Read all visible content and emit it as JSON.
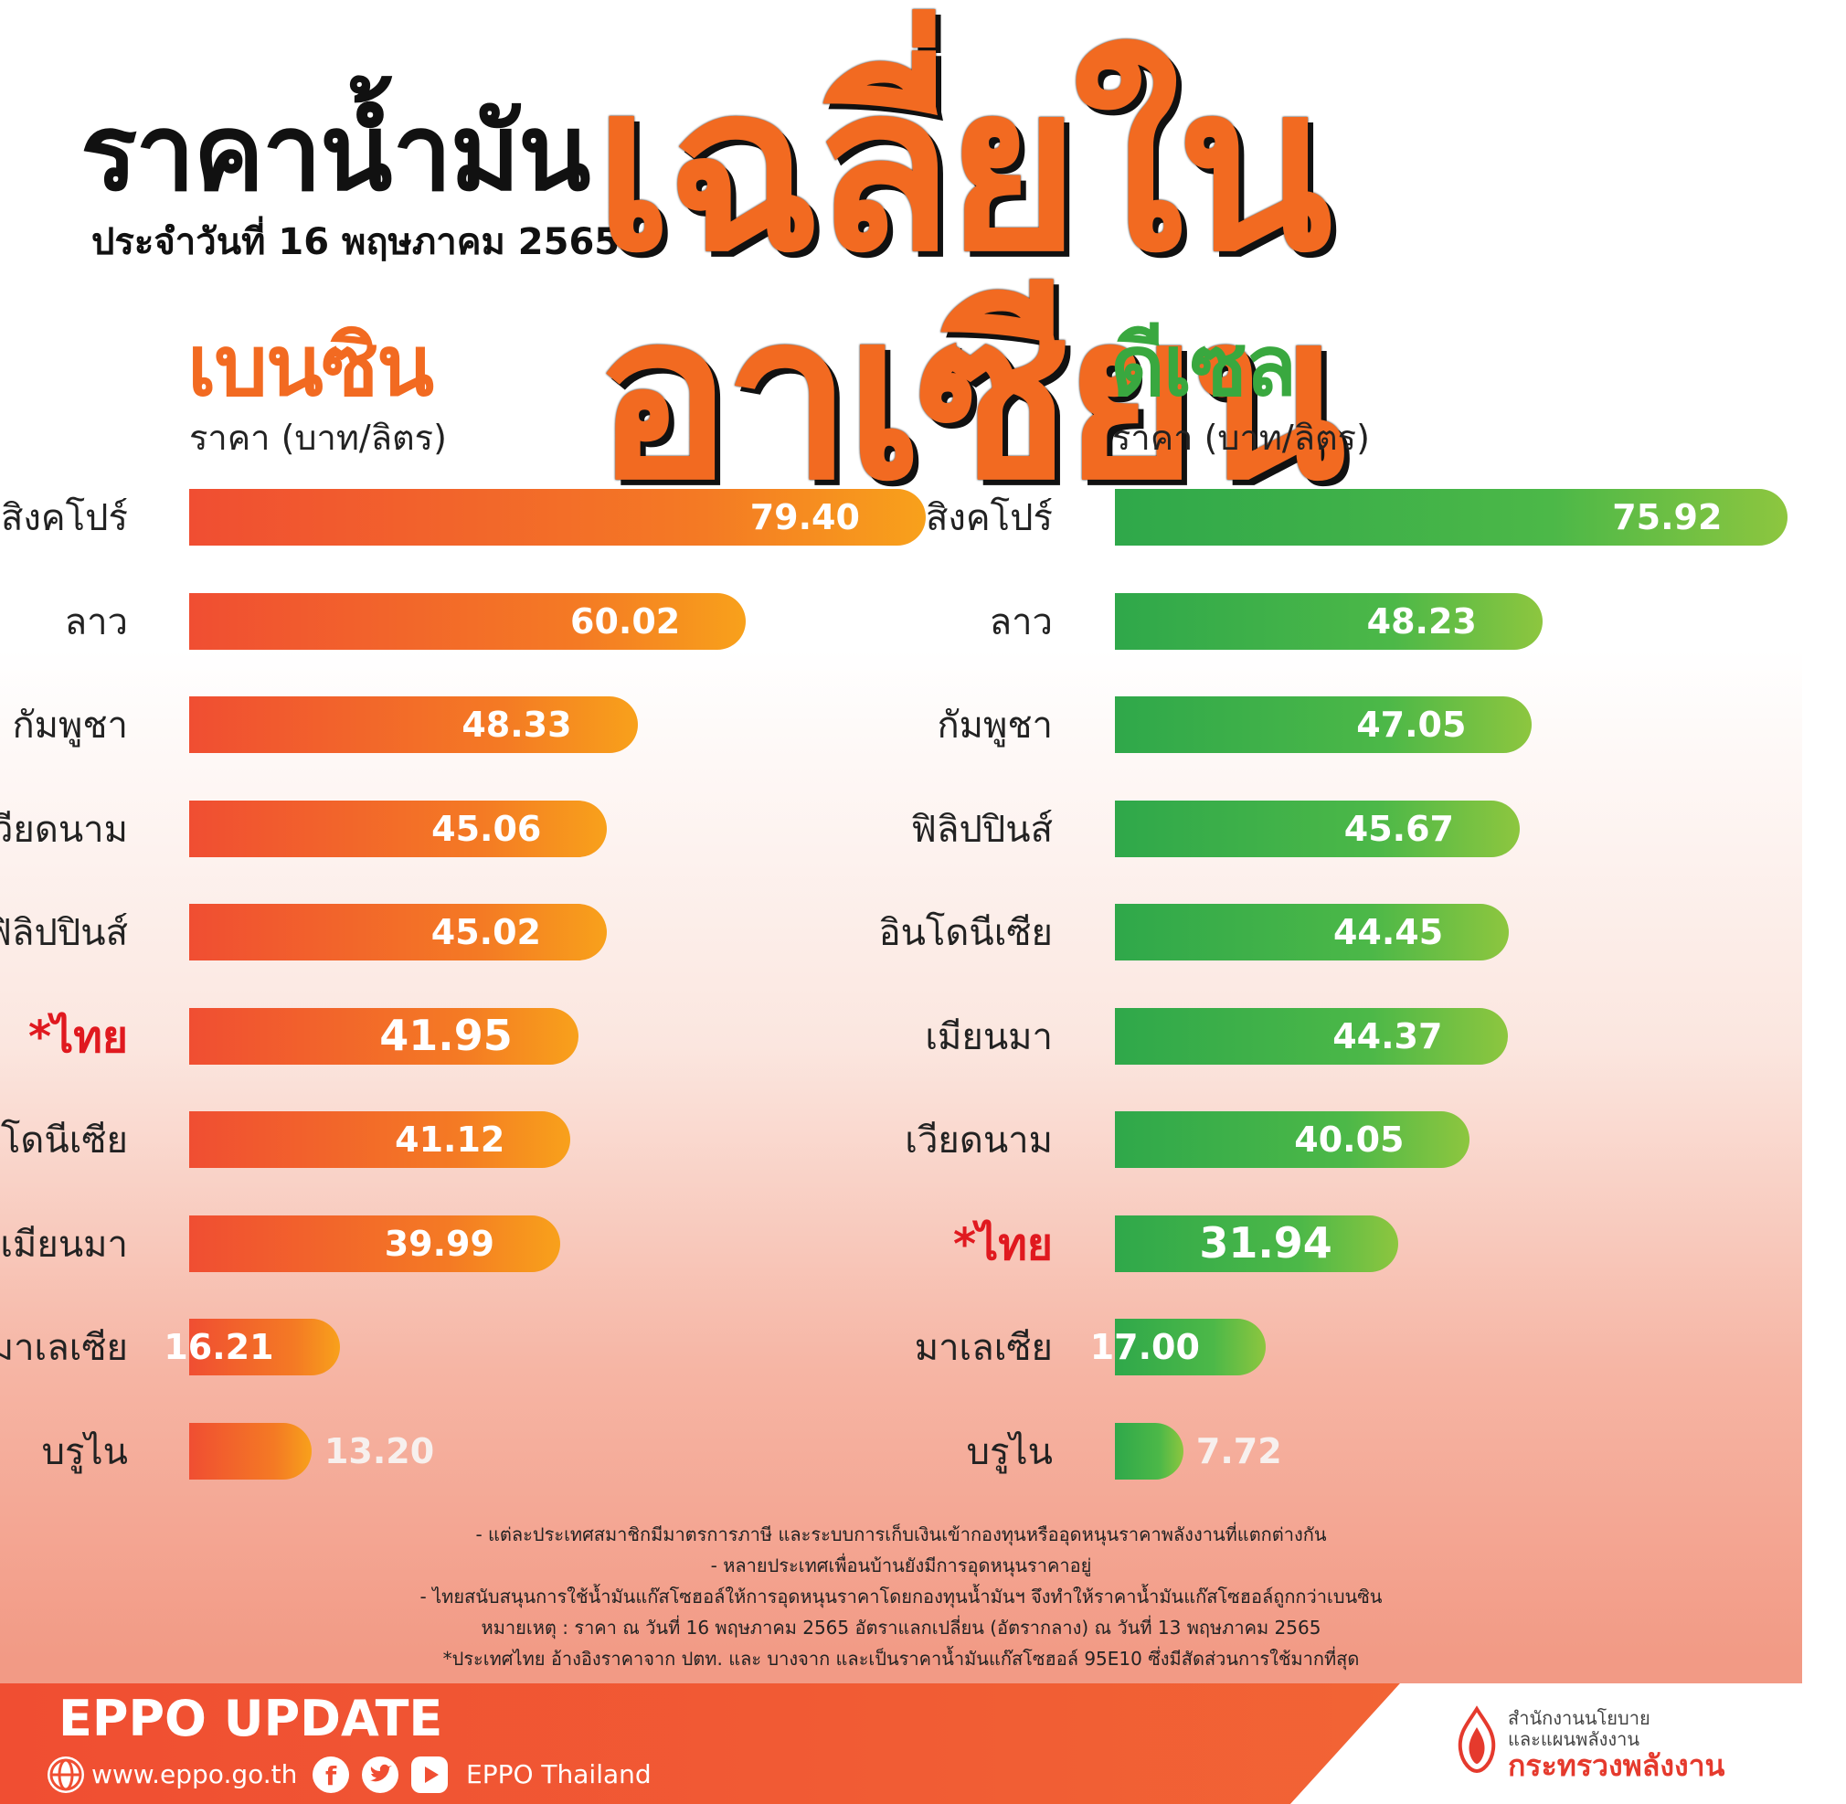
{
  "header": {
    "title": "ราคาน้ำมัน",
    "subtitle_date": "ประจำวันที่ 16 พฤษภาคม 2565",
    "title_big": "เฉลี่ยในอาเซียน"
  },
  "chart_data": [
    {
      "type": "bar",
      "orientation": "horizontal",
      "title": "เบนซิน",
      "unit_label": "ราคา (บาท/ลิตร)",
      "color": "#f26a21",
      "categories": [
        "สิงคโปร์",
        "ลาว",
        "กัมพูชา",
        "เวียดนาม",
        "ฟิลิปปินส์",
        "*ไทย",
        "อินโดนีเซีย",
        "เมียนมา",
        "มาเลเซีย",
        "บรูไน"
      ],
      "values": [
        79.4,
        60.02,
        48.33,
        45.06,
        45.02,
        41.95,
        41.12,
        39.99,
        16.21,
        13.2
      ],
      "value_labels": [
        "79.40",
        "60.02",
        "48.33",
        "45.06",
        "45.02",
        "41.95",
        "41.12",
        "39.99",
        "16.21",
        "13.20"
      ],
      "highlight": "*ไทย"
    },
    {
      "type": "bar",
      "orientation": "horizontal",
      "title": "ดีเซล",
      "unit_label": "ราคา (บาท/ลิตร)",
      "color": "#39a83f",
      "categories": [
        "สิงคโปร์",
        "ลาว",
        "กัมพูชา",
        "ฟิลิปปินส์",
        "อินโดนีเซีย",
        "เมียนมา",
        "เวียดนาม",
        "*ไทย",
        "มาเลเซีย",
        "บรูไน"
      ],
      "values": [
        75.92,
        48.23,
        47.05,
        45.67,
        44.45,
        44.37,
        40.05,
        31.94,
        17.0,
        7.72
      ],
      "value_labels": [
        "75.92",
        "48.23",
        "47.05",
        "45.67",
        "44.45",
        "44.37",
        "40.05",
        "31.94",
        "17.00",
        "7.72"
      ],
      "highlight": "*ไทย"
    }
  ],
  "notes": [
    "- แต่ละประเทศสมาชิกมีมาตรการภาษี และระบบการเก็บเงินเข้ากองทุนหรืออุดหนุนราคาพลังงานที่แตกต่างกัน",
    "- หลายประเทศเพื่อนบ้านยังมีการอุดหนุนราคาอยู่",
    "- ไทยสนับสนุนการใช้น้ำมันแก๊สโซฮอล์ให้การอุดหนุนราคาโดยกองทุนน้ำมันฯ จึงทำให้ราคาน้ำมันแก๊สโซฮอล์ถูกกว่าเบนซิน",
    "หมายเหตุ : ราคา ณ วันที่ 16 พฤษภาคม 2565 อัตราแลกเปลี่ยน (อัตรากลาง) ณ วันที่ 13 พฤษภาคม 2565",
    "*ประเทศไทย อ้างอิงราคาจาก ปตท. และ บางจาก และเป็นราคาน้ำมันแก๊สโซฮอล์ 95E10 ซึ่งมีสัดส่วนการใช้มากที่สุด"
  ],
  "footer": {
    "brand": "EPPO UPDATE",
    "website": "www.eppo.go.th",
    "social_name": "EPPO Thailand",
    "icons": [
      "globe-icon",
      "facebook-icon",
      "twitter-icon",
      "youtube-icon"
    ],
    "org_line1": "สำนักงานนโยบาย",
    "org_line2": "และแผนพลังงาน",
    "org_main": "กระทรวงพลังงาน"
  },
  "colors": {
    "orange": "#f26a21",
    "green": "#39a83f",
    "highlight_red": "#e0191f",
    "footer_orange": "#f04e32"
  }
}
